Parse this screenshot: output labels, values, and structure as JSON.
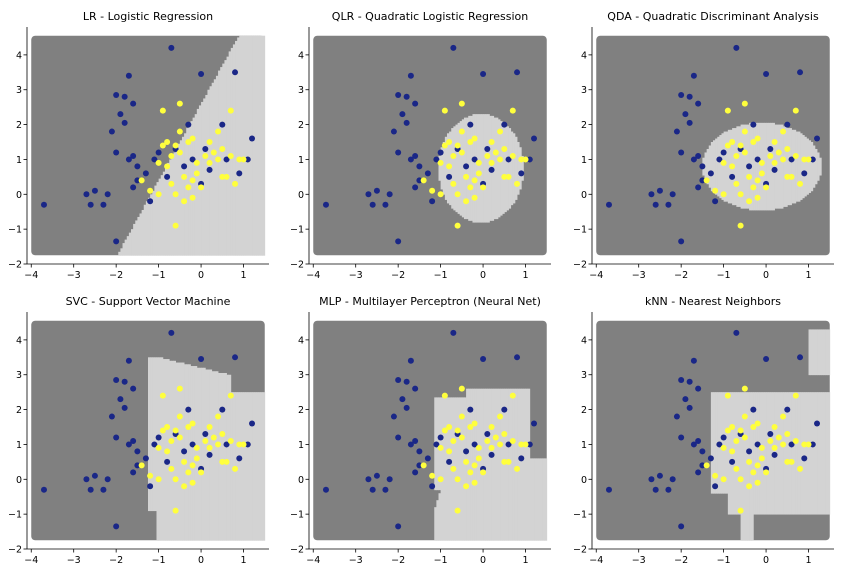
{
  "chart_data": {
    "type": "scatter",
    "xlim": [
      -4.1,
      1.6
    ],
    "ylim": [
      -2.0,
      4.8
    ],
    "xticks": [
      -4,
      -3,
      -2,
      -1,
      0,
      1
    ],
    "yticks": [
      -2,
      -1,
      0,
      1,
      2,
      3,
      4
    ],
    "xtick_labels": [
      "−4",
      "−3",
      "−2",
      "−1",
      "0",
      "1"
    ],
    "ytick_labels": [
      "−2",
      "−1",
      "0",
      "1",
      "2",
      "3",
      "4"
    ],
    "region_extent": {
      "x": [
        -4.0,
        1.5
      ],
      "y": [
        -1.75,
        4.55
      ]
    },
    "colors": {
      "region_class0": "#808080",
      "region_class1": "#d3d3d3",
      "class0": "#1a2787",
      "class1": "#ffff3d"
    },
    "classes": {
      "class0": [
        [
          -3.7,
          -0.3
        ],
        [
          -2.7,
          0.0
        ],
        [
          -2.6,
          -0.3
        ],
        [
          -2.5,
          0.1
        ],
        [
          -2.3,
          -0.3
        ],
        [
          -2.2,
          0.0
        ],
        [
          -2.0,
          -1.35
        ],
        [
          -2.0,
          2.85
        ],
        [
          -2.1,
          1.8
        ],
        [
          -2.0,
          1.2
        ],
        [
          -1.9,
          2.3
        ],
        [
          -1.8,
          2.05
        ],
        [
          -1.7,
          3.4
        ],
        [
          -1.8,
          2.8
        ],
        [
          -1.6,
          2.6
        ],
        [
          -1.6,
          1.1
        ],
        [
          -1.7,
          1.0
        ],
        [
          -1.5,
          0.8
        ],
        [
          -1.5,
          0.4
        ],
        [
          -1.6,
          0.2
        ],
        [
          -1.3,
          0.6
        ],
        [
          -1.2,
          -0.2
        ],
        [
          -1.0,
          1.2
        ],
        [
          -0.8,
          0.5
        ],
        [
          -0.7,
          4.2
        ],
        [
          -0.6,
          1.3
        ],
        [
          -0.4,
          0.8
        ],
        [
          -0.3,
          2.0
        ],
        [
          -0.2,
          1.0
        ],
        [
          0.0,
          0.3
        ],
        [
          0.1,
          1.3
        ],
        [
          0.2,
          0.7
        ],
        [
          0.0,
          3.45
        ],
        [
          0.5,
          2.0
        ],
        [
          0.6,
          1.0
        ],
        [
          0.8,
          3.5
        ],
        [
          0.9,
          0.6
        ],
        [
          1.1,
          1.0
        ],
        [
          1.2,
          1.6
        ],
        [
          -1.1,
          1.0
        ]
      ],
      "class1": [
        [
          -1.4,
          0.4
        ],
        [
          -1.2,
          0.1
        ],
        [
          -1.0,
          0.0
        ],
        [
          -1.0,
          0.9
        ],
        [
          -0.9,
          1.4
        ],
        [
          -0.8,
          1.5
        ],
        [
          -0.7,
          1.1
        ],
        [
          -0.7,
          0.3
        ],
        [
          -0.6,
          0.0
        ],
        [
          -0.6,
          1.4
        ],
        [
          -0.5,
          1.8
        ],
        [
          -0.5,
          2.6
        ],
        [
          -0.5,
          1.2
        ],
        [
          -0.4,
          0.5
        ],
        [
          -0.4,
          -0.2
        ],
        [
          -0.3,
          1.5
        ],
        [
          -0.3,
          0.2
        ],
        [
          -0.2,
          0.4
        ],
        [
          -0.2,
          -0.1
        ],
        [
          -0.1,
          0.9
        ],
        [
          -0.1,
          0.6
        ],
        [
          0.0,
          0.2
        ],
        [
          0.1,
          1.1
        ],
        [
          0.2,
          1.5
        ],
        [
          0.2,
          0.9
        ],
        [
          0.3,
          1.2
        ],
        [
          0.4,
          1.8
        ],
        [
          0.5,
          0.5
        ],
        [
          0.5,
          1.3
        ],
        [
          0.6,
          0.5
        ],
        [
          0.7,
          2.4
        ],
        [
          0.7,
          1.1
        ],
        [
          0.8,
          0.3
        ],
        [
          0.9,
          1.0
        ],
        [
          1.0,
          1.0
        ],
        [
          -0.6,
          -0.9
        ],
        [
          -0.8,
          0.8
        ],
        [
          -0.9,
          2.4
        ],
        [
          -0.2,
          1.6
        ],
        [
          0.4,
          1.0
        ]
      ]
    },
    "panels": [
      {
        "title": "LR - Logistic Regression",
        "boundary": "linear"
      },
      {
        "title": "QLR - Quadratic Logistic Regression",
        "boundary": "ellipse_tall"
      },
      {
        "title": "QDA - Quadratic Discriminant Analysis",
        "boundary": "ellipse_wide"
      },
      {
        "title": "SVC - Support Vector Machine",
        "boundary": "rbf"
      },
      {
        "title": "MLP - Multilayer Perceptron (Neural Net)",
        "boundary": "mlp"
      },
      {
        "title": "kNN - Nearest Neighbors",
        "boundary": "knn"
      }
    ]
  }
}
